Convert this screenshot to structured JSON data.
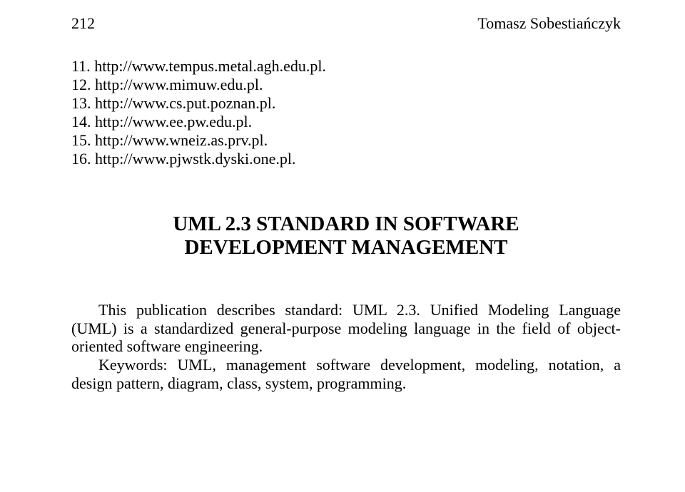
{
  "header": {
    "page_number": "212",
    "author": "Tomasz Sobestiańczyk"
  },
  "references": [
    {
      "num": "11.",
      "url": "http://www.tempus.metal.agh.edu.pl."
    },
    {
      "num": "12.",
      "url": "http://www.mimuw.edu.pl."
    },
    {
      "num": "13.",
      "url": "http://www.cs.put.poznan.pl."
    },
    {
      "num": "14.",
      "url": "http://www.ee.pw.edu.pl."
    },
    {
      "num": "15.",
      "url": "http://www.wneiz.as.prv.pl."
    },
    {
      "num": "16.",
      "url": "http://www.pjwstk.dyski.one.pl."
    }
  ],
  "title": {
    "line1": "UML 2.3 STANDARD IN SOFTWARE",
    "line2": "DEVELOPMENT MANAGEMENT"
  },
  "abstract": {
    "p1": "This publication describes standard: UML 2.3. Unified Modeling Language (UML) is a standardized general-purpose modeling language in the field of object-oriented software engineering.",
    "p2": "Keywords: UML, management software development, modeling, notation, a design pattern, diagram, class, system, programming."
  }
}
